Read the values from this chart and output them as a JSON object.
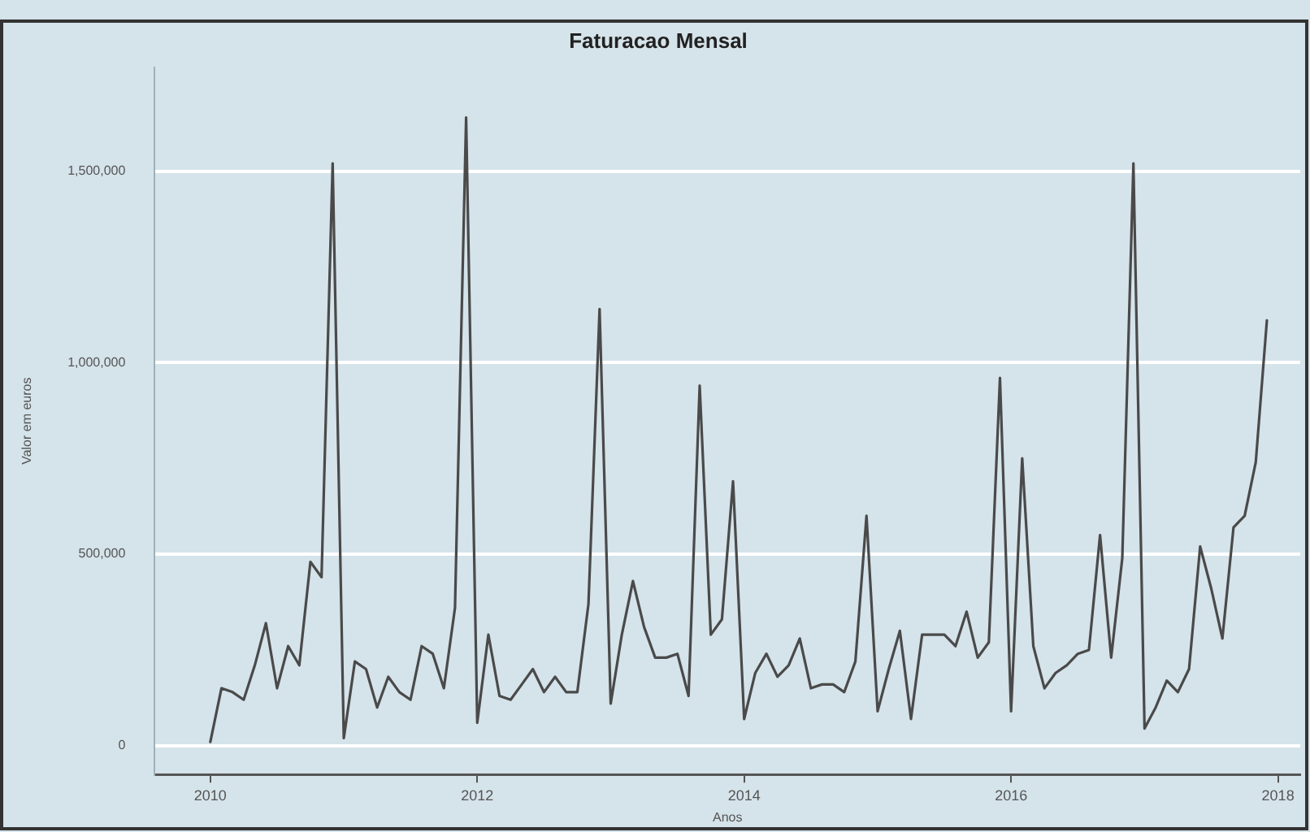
{
  "chart_data": {
    "type": "line",
    "title": "Faturacao Mensal",
    "xlabel": "Anos",
    "ylabel": "Valor em euros",
    "x": [
      "2010-01",
      "2010-02",
      "2010-03",
      "2010-04",
      "2010-05",
      "2010-06",
      "2010-07",
      "2010-08",
      "2010-09",
      "2010-10",
      "2010-11",
      "2010-12",
      "2011-01",
      "2011-02",
      "2011-03",
      "2011-04",
      "2011-05",
      "2011-06",
      "2011-07",
      "2011-08",
      "2011-09",
      "2011-10",
      "2011-11",
      "2011-12",
      "2012-01",
      "2012-02",
      "2012-03",
      "2012-04",
      "2012-05",
      "2012-06",
      "2012-07",
      "2012-08",
      "2012-09",
      "2012-10",
      "2012-11",
      "2012-12",
      "2013-01",
      "2013-02",
      "2013-03",
      "2013-04",
      "2013-05",
      "2013-06",
      "2013-07",
      "2013-08",
      "2013-09",
      "2013-10",
      "2013-11",
      "2013-12",
      "2014-01",
      "2014-02",
      "2014-03",
      "2014-04",
      "2014-05",
      "2014-06",
      "2014-07",
      "2014-08",
      "2014-09",
      "2014-10",
      "2014-11",
      "2014-12",
      "2015-01",
      "2015-02",
      "2015-03",
      "2015-04",
      "2015-05",
      "2015-06",
      "2015-07",
      "2015-08",
      "2015-09",
      "2015-10",
      "2015-11",
      "2015-12",
      "2016-01",
      "2016-02",
      "2016-03",
      "2016-04",
      "2016-05",
      "2016-06",
      "2016-07",
      "2016-08",
      "2016-09",
      "2016-10",
      "2016-11",
      "2016-12",
      "2017-01",
      "2017-02",
      "2017-03",
      "2017-04",
      "2017-05",
      "2017-06",
      "2017-07",
      "2017-08",
      "2017-09",
      "2017-10",
      "2017-11",
      "2017-12"
    ],
    "series": [
      {
        "color": "#4a4a4a",
        "values": [
          10000,
          150000,
          140000,
          120000,
          210000,
          320000,
          150000,
          260000,
          210000,
          480000,
          440000,
          1520000,
          20000,
          220000,
          200000,
          100000,
          180000,
          140000,
          120000,
          260000,
          240000,
          150000,
          360000,
          1640000,
          60000,
          290000,
          130000,
          120000,
          160000,
          200000,
          140000,
          180000,
          140000,
          140000,
          370000,
          1140000,
          110000,
          290000,
          430000,
          310000,
          230000,
          230000,
          240000,
          130000,
          940000,
          290000,
          330000,
          690000,
          70000,
          190000,
          240000,
          180000,
          210000,
          280000,
          150000,
          160000,
          160000,
          140000,
          220000,
          600000,
          90000,
          200000,
          300000,
          70000,
          290000,
          290000,
          290000,
          260000,
          350000,
          230000,
          270000,
          960000,
          90000,
          750000,
          260000,
          150000,
          190000,
          210000,
          240000,
          250000,
          550000,
          230000,
          490000,
          1520000,
          45000,
          100000,
          170000,
          140000,
          200000,
          520000,
          410000,
          280000,
          570000,
          600000,
          740000,
          1110000
        ]
      }
    ],
    "xlim": [
      "2009-08",
      "2018-03"
    ],
    "xticks": [
      "2010",
      "2012",
      "2014",
      "2016",
      "2018"
    ],
    "ylim": [
      -75000,
      1770000
    ],
    "yticks": [
      {
        "value": 0,
        "label": "0"
      },
      {
        "value": 500000,
        "label": "500,000"
      },
      {
        "value": 1000000,
        "label": "1,000,000"
      },
      {
        "value": 1500000,
        "label": "1,500,000"
      }
    ],
    "grid": "y",
    "legend": false,
    "marker": "none",
    "line_style": "solid"
  }
}
